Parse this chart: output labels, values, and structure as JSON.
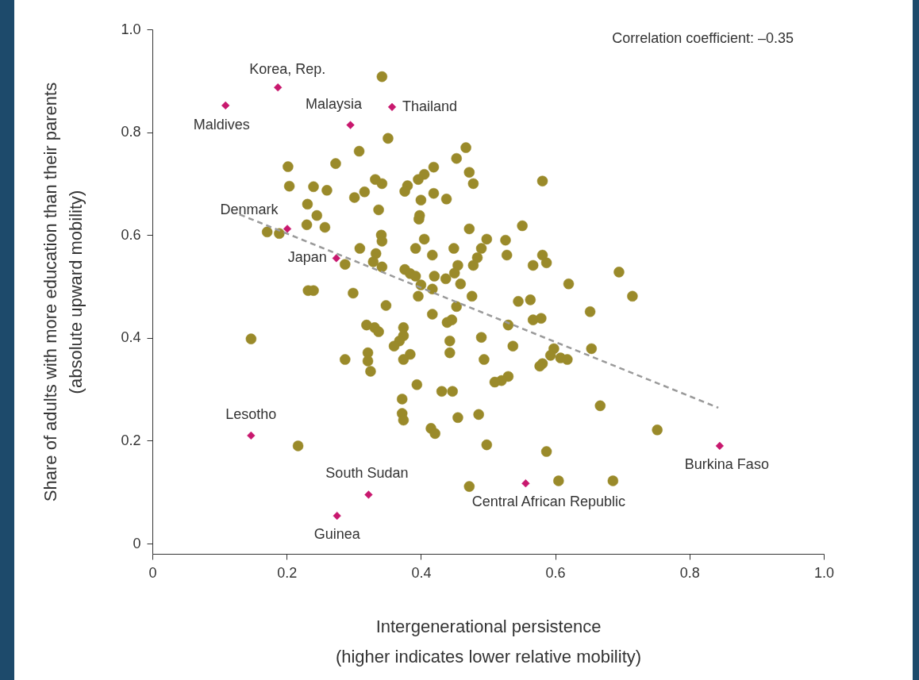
{
  "chart_data": {
    "type": "scatter",
    "xlabel": "Intergenerational persistence\n(higher indicates lower relative mobility)",
    "ylabel": "Share of adults with more education than their parents\n(absolute upward mobility)",
    "xlim": [
      0,
      1
    ],
    "xticks": [
      0,
      0.2,
      0.4,
      0.6,
      0.8,
      {
        "value": 1,
        "label": "1.0"
      }
    ],
    "ylim": [
      -0.02,
      1
    ],
    "yticks": [
      0,
      0.2,
      0.4,
      0.6,
      0.8,
      {
        "value": 1,
        "label": "1.0"
      }
    ],
    "grid": false,
    "marker": "circle",
    "series": [
      {
        "color": "#9a8a2a",
        "x": [
          0.342,
          0.351,
          0.308,
          0.273,
          0.202,
          0.467,
          0.453,
          0.472,
          0.478,
          0.419,
          0.405,
          0.396,
          0.38,
          0.376,
          0.204,
          0.24,
          0.26,
          0.332,
          0.342,
          0.316,
          0.301,
          0.337,
          0.4,
          0.419,
          0.438,
          0.231,
          0.245,
          0.23,
          0.257,
          0.171,
          0.189,
          0.341,
          0.342,
          0.398,
          0.397,
          0.472,
          0.405,
          0.392,
          0.417,
          0.449,
          0.455,
          0.498,
          0.49,
          0.484,
          0.478,
          0.309,
          0.333,
          0.329,
          0.342,
          0.287,
          0.376,
          0.384,
          0.392,
          0.232,
          0.24,
          0.299,
          0.348,
          0.396,
          0.417,
          0.453,
          0.459,
          0.476,
          0.439,
          0.446,
          0.49,
          0.494,
          0.147,
          0.287,
          0.319,
          0.331,
          0.337,
          0.321,
          0.321,
          0.325,
          0.374,
          0.374,
          0.368,
          0.36,
          0.384,
          0.374,
          0.443,
          0.443,
          0.394,
          0.431,
          0.447,
          0.372,
          0.372,
          0.374,
          0.415,
          0.421,
          0.455,
          0.486,
          0.498,
          0.217,
          0.472,
          0.695,
          0.62,
          0.715,
          0.545,
          0.563,
          0.652,
          0.567,
          0.579,
          0.53,
          0.537,
          0.598,
          0.593,
          0.608,
          0.618,
          0.581,
          0.577,
          0.654,
          0.53,
          0.52,
          0.51,
          0.667,
          0.752,
          0.587,
          0.605,
          0.686,
          0.581,
          0.551,
          0.526,
          0.528,
          0.581,
          0.587,
          0.567,
          0.42,
          0.437,
          0.417,
          0.45,
          0.4
        ],
        "values": [
          0.908,
          0.788,
          0.763,
          0.739,
          0.733,
          0.77,
          0.749,
          0.722,
          0.7,
          0.732,
          0.718,
          0.708,
          0.696,
          0.685,
          0.695,
          0.694,
          0.687,
          0.708,
          0.7,
          0.684,
          0.673,
          0.649,
          0.668,
          0.681,
          0.67,
          0.66,
          0.638,
          0.62,
          0.615,
          0.606,
          0.603,
          0.6,
          0.588,
          0.638,
          0.631,
          0.612,
          0.592,
          0.574,
          0.561,
          0.574,
          0.541,
          0.592,
          0.574,
          0.556,
          0.541,
          0.574,
          0.564,
          0.548,
          0.538,
          0.543,
          0.533,
          0.525,
          0.52,
          0.492,
          0.492,
          0.487,
          0.463,
          0.481,
          0.446,
          0.461,
          0.505,
          0.481,
          0.43,
          0.435,
          0.401,
          0.358,
          0.398,
          0.358,
          0.425,
          0.42,
          0.412,
          0.371,
          0.355,
          0.335,
          0.42,
          0.404,
          0.394,
          0.384,
          0.368,
          0.358,
          0.394,
          0.371,
          0.309,
          0.296,
          0.296,
          0.281,
          0.253,
          0.24,
          0.224,
          0.214,
          0.245,
          0.251,
          0.192,
          0.19,
          0.111,
          0.528,
          0.505,
          0.481,
          0.471,
          0.474,
          0.451,
          0.435,
          0.438,
          0.425,
          0.384,
          0.379,
          0.366,
          0.361,
          0.358,
          0.35,
          0.345,
          0.379,
          0.325,
          0.317,
          0.314,
          0.268,
          0.221,
          0.179,
          0.122,
          0.122,
          0.705,
          0.618,
          0.59,
          0.561,
          0.561,
          0.546,
          0.541,
          0.52,
          0.515,
          0.495,
          0.526,
          0.503
        ]
      },
      {
        "color": "#c8186e",
        "marker": "diamond",
        "x": [
          0.109,
          0.187,
          0.295,
          0.357,
          0.201,
          0.274,
          0.147,
          0.322,
          0.275,
          0.556,
          0.845
        ],
        "values": [
          0.852,
          0.887,
          0.814,
          0.849,
          0.612,
          0.555,
          0.21,
          0.095,
          0.054,
          0.117,
          0.19
        ]
      },
      {
        "type": "line",
        "color": "#9a9a9a",
        "line_style": "dashed",
        "marker": "none",
        "x": [
          0.13,
          0.843
        ],
        "values": [
          0.64,
          0.264
        ]
      }
    ],
    "annotations": [
      "Correlation coefficient: –0.35",
      {
        "text": "Maldives",
        "x": 0.109,
        "y": 0.852
      },
      {
        "text": "Korea, Rep.",
        "x": 0.187,
        "y": 0.887
      },
      {
        "text": "Malaysia",
        "x": 0.295,
        "y": 0.814
      },
      {
        "text": "Thailand",
        "x": 0.357,
        "y": 0.849
      },
      {
        "text": "Denmark",
        "x": 0.201,
        "y": 0.612
      },
      {
        "text": "Japan",
        "x": 0.274,
        "y": 0.555
      },
      {
        "text": "Lesotho",
        "x": 0.147,
        "y": 0.21
      },
      {
        "text": "South Sudan",
        "x": 0.322,
        "y": 0.095
      },
      {
        "text": "Guinea",
        "x": 0.275,
        "y": 0.054
      },
      {
        "text": "Central African Republic",
        "x": 0.556,
        "y": 0.117
      },
      {
        "text": "Burkina Faso",
        "x": 0.845,
        "y": 0.19
      }
    ]
  }
}
